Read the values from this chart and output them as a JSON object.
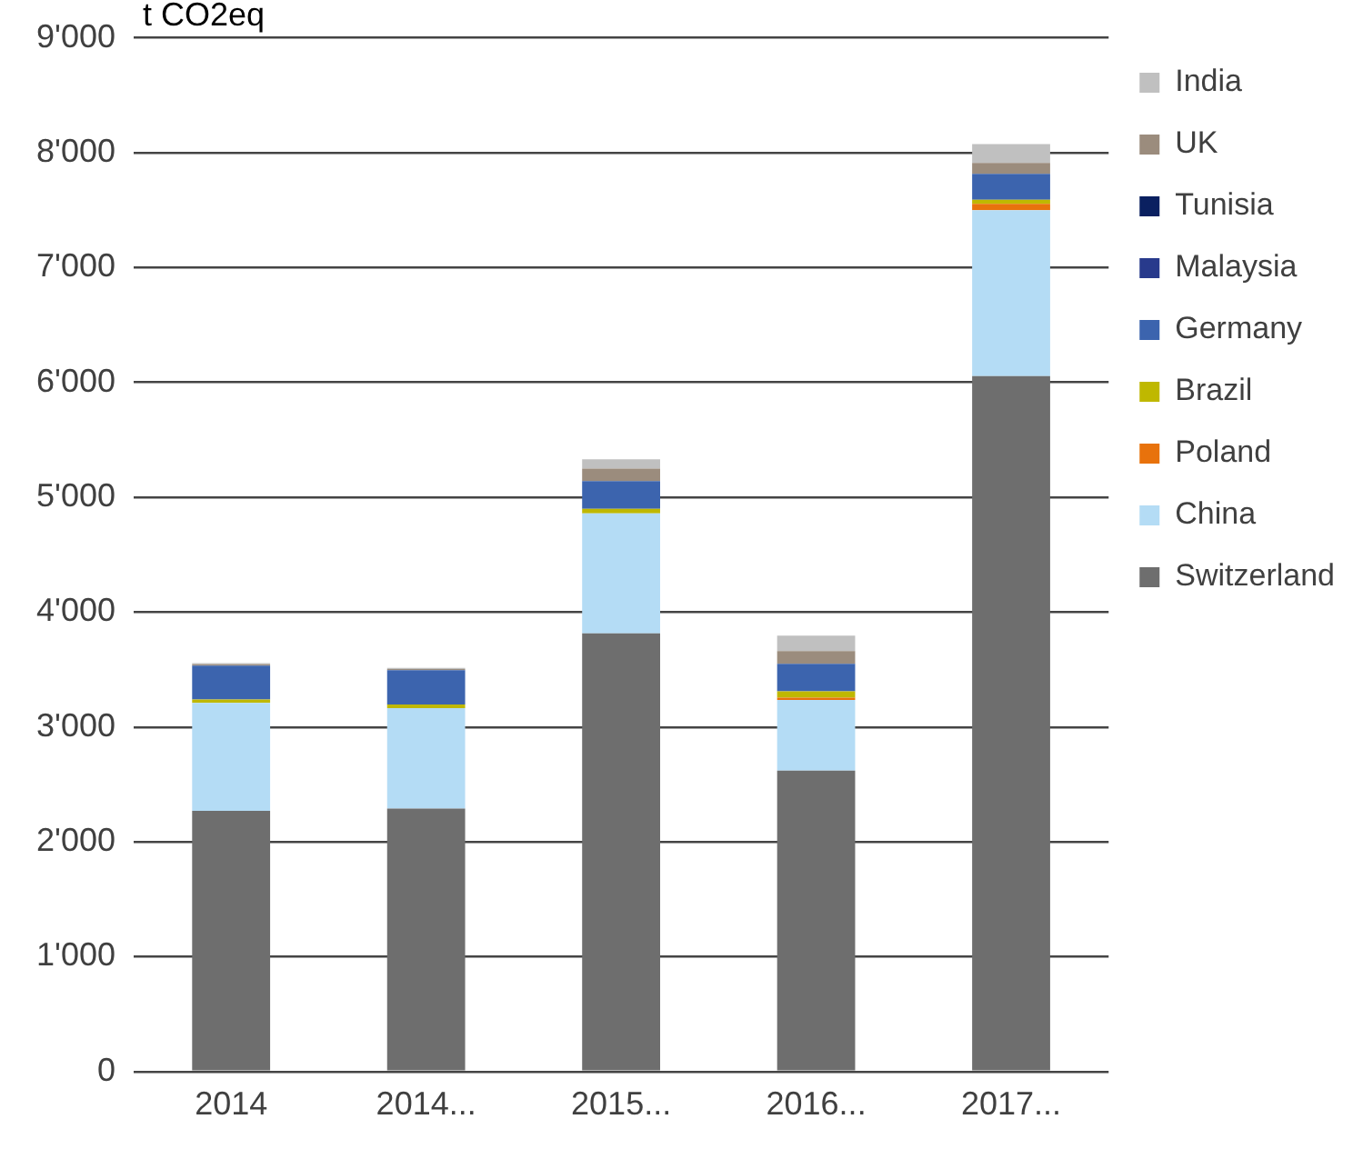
{
  "chart_data": {
    "type": "bar",
    "stacked": true,
    "ylabel": "t CO2eq",
    "categories": [
      "2014",
      "2014...",
      "2015...",
      "2016...",
      "2017..."
    ],
    "series": [
      {
        "name": "Switzerland",
        "color": "#6e6e6e",
        "values": [
          2270,
          2290,
          3815,
          2620,
          6055
        ]
      },
      {
        "name": "China",
        "color": "#b4dcf5",
        "values": [
          940,
          875,
          1045,
          615,
          1445
        ]
      },
      {
        "name": "Poland",
        "color": "#e8720c",
        "values": [
          0,
          0,
          0,
          20,
          55
        ]
      },
      {
        "name": "Brazil",
        "color": "#bfb800",
        "values": [
          30,
          30,
          40,
          55,
          35
        ]
      },
      {
        "name": "Germany",
        "color": "#3c64ae",
        "values": [
          295,
          300,
          240,
          240,
          225
        ]
      },
      {
        "name": "Malaysia",
        "color": "#283a8c",
        "values": [
          0,
          0,
          0,
          0,
          0
        ]
      },
      {
        "name": "Tunisia",
        "color": "#0a2060",
        "values": [
          0,
          0,
          0,
          0,
          0
        ]
      },
      {
        "name": "UK",
        "color": "#9b8c7d",
        "values": [
          10,
          10,
          110,
          110,
          95
        ]
      },
      {
        "name": "India",
        "color": "#c0c0c0",
        "values": [
          10,
          10,
          80,
          135,
          165
        ]
      }
    ],
    "ylim": [
      0,
      9000
    ],
    "yticks": [
      0,
      {
        "value": 1000,
        "label": "1'000"
      },
      {
        "value": 2000,
        "label": "2'000"
      },
      {
        "value": 3000,
        "label": "3'000"
      },
      {
        "value": 4000,
        "label": "4'000"
      },
      {
        "value": 5000,
        "label": "5'000"
      },
      {
        "value": 6000,
        "label": "6'000"
      },
      {
        "value": 7000,
        "label": "7'000"
      },
      {
        "value": 8000,
        "label": "8'000"
      },
      {
        "value": 9000,
        "label": "9'000"
      }
    ],
    "grid": "y",
    "legend": "top right"
  }
}
